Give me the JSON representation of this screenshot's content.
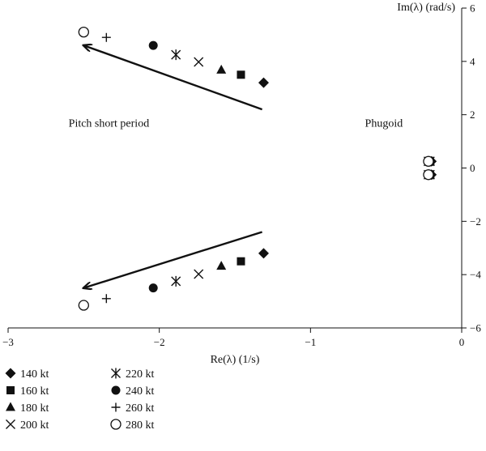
{
  "chart_data": {
    "type": "scatter",
    "title": "",
    "xlabel": "Re(λ) (1/s)",
    "ylabel": "Im(λ) (rad/s)",
    "xlim": [
      -3,
      0
    ],
    "ylim": [
      -6,
      6
    ],
    "x_ticks": [
      {
        "value": -3,
        "label": "−3"
      },
      {
        "value": -2,
        "label": "−2"
      },
      {
        "value": -1,
        "label": "−1"
      },
      {
        "value": 0,
        "label": "0"
      }
    ],
    "y_ticks": [
      {
        "value": 6,
        "label": "6"
      },
      {
        "value": 4,
        "label": "4"
      },
      {
        "value": 2,
        "label": "2"
      },
      {
        "value": 0,
        "label": "0"
      },
      {
        "value": -2,
        "label": "−2"
      },
      {
        "value": -4,
        "label": "−4"
      },
      {
        "value": -6,
        "label": "−6"
      }
    ],
    "grid": false,
    "legend_position": "bottom-left",
    "series": [
      {
        "name": "140 kt",
        "marker": "diamond",
        "points": [
          [
            -1.31,
            3.2
          ],
          [
            -1.31,
            -3.2
          ],
          [
            -0.2,
            0.25
          ],
          [
            -0.2,
            -0.25
          ]
        ]
      },
      {
        "name": "160 kt",
        "marker": "square",
        "points": [
          [
            -1.46,
            3.5
          ],
          [
            -1.46,
            -3.5
          ],
          [
            -0.21,
            0.25
          ],
          [
            -0.21,
            -0.25
          ]
        ]
      },
      {
        "name": "180 kt",
        "marker": "triangle",
        "points": [
          [
            -1.59,
            3.68
          ],
          [
            -1.59,
            -3.68
          ],
          [
            -0.21,
            0.25
          ],
          [
            -0.21,
            -0.25
          ]
        ]
      },
      {
        "name": "200 kt",
        "marker": "x",
        "points": [
          [
            -1.74,
            3.98
          ],
          [
            -1.74,
            -3.98
          ],
          [
            -0.21,
            0.25
          ],
          [
            -0.21,
            -0.25
          ]
        ]
      },
      {
        "name": "220 kt",
        "marker": "asterisk",
        "points": [
          [
            -1.89,
            4.25
          ],
          [
            -1.89,
            -4.25
          ],
          [
            -0.22,
            0.25
          ],
          [
            -0.22,
            -0.25
          ]
        ]
      },
      {
        "name": "240 kt",
        "marker": "circle-filled",
        "points": [
          [
            -2.04,
            4.6
          ],
          [
            -2.04,
            -4.5
          ],
          [
            -0.22,
            0.25
          ],
          [
            -0.22,
            -0.25
          ]
        ]
      },
      {
        "name": "260 kt",
        "marker": "plus",
        "points": [
          [
            -2.35,
            4.9
          ],
          [
            -2.35,
            -4.9
          ],
          [
            -0.22,
            0.25
          ],
          [
            -0.22,
            -0.25
          ]
        ]
      },
      {
        "name": "280 kt",
        "marker": "circle-open",
        "points": [
          [
            -2.5,
            5.1
          ],
          [
            -2.5,
            -5.15
          ],
          [
            -0.22,
            0.25
          ],
          [
            -0.22,
            -0.25
          ]
        ]
      }
    ],
    "arrows": [
      {
        "from": [
          -1.32,
          2.2
        ],
        "to": [
          -2.5,
          4.6
        ]
      },
      {
        "from": [
          -1.32,
          -2.4
        ],
        "to": [
          -2.5,
          -4.5
        ]
      }
    ],
    "annotations": [
      {
        "text": "Pitch short period",
        "x": -2.6,
        "y": 1.55
      },
      {
        "text": "Phugoid",
        "x": -0.64,
        "y": 1.55
      }
    ]
  }
}
